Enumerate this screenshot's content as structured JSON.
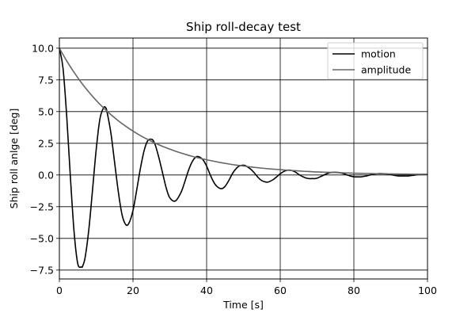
{
  "chart_data": {
    "type": "line",
    "title": "Ship roll-decay test",
    "xlabel": "Time [s]",
    "ylabel": "Ship roll anlge [deg]",
    "xlim": [
      0,
      100
    ],
    "ylim": [
      -8.2,
      10.8
    ],
    "xticks": [
      0,
      20,
      40,
      60,
      80,
      100
    ],
    "xtick_labels": [
      "0",
      "20",
      "40",
      "60",
      "80",
      "100"
    ],
    "yticks": [
      -7.5,
      -5.0,
      -2.5,
      0.0,
      2.5,
      5.0,
      7.5,
      10.0
    ],
    "ytick_labels": [
      "−7.5",
      "−5.0",
      "−2.5",
      "0.0",
      "2.5",
      "5.0",
      "7.5",
      "10.0"
    ],
    "grid": true,
    "legend_position": "top-right",
    "series": [
      {
        "name": "motion",
        "color": "#000000",
        "x": [
          0,
          1,
          2,
          3,
          4,
          5,
          6,
          6.3,
          7,
          8,
          9,
          10,
          11,
          12,
          12.6,
          13,
          14,
          15,
          16,
          17,
          18,
          18.9,
          20,
          21,
          22,
          23,
          24,
          25.2,
          26,
          27,
          28,
          29,
          30,
          31.5,
          33,
          34,
          35,
          36,
          37,
          37.8,
          39,
          40,
          41,
          42,
          43,
          44.1,
          45,
          46,
          47,
          48,
          49,
          50.4,
          52,
          53,
          54,
          55,
          56,
          56.7,
          58,
          59,
          60,
          61,
          62,
          63,
          64,
          65,
          66,
          67,
          68,
          69,
          69.3,
          70,
          71,
          72,
          73,
          74,
          75.6,
          77,
          78,
          79,
          80,
          81,
          81.9,
          83,
          84,
          85,
          86,
          87,
          88.2,
          90,
          91,
          92,
          93,
          94,
          94.5,
          96,
          97,
          98,
          99,
          100
        ],
        "y": [
          10.0,
          8.4,
          4.6,
          -0.2,
          -4.5,
          -7.0,
          -7.25,
          -7.2,
          -6.5,
          -4.3,
          -1.2,
          2.0,
          4.4,
          5.3,
          5.3,
          4.9,
          3.3,
          1.0,
          -1.3,
          -3.1,
          -3.9,
          -3.8,
          -2.8,
          -1.2,
          0.5,
          1.9,
          2.7,
          2.8,
          2.4,
          1.4,
          0.2,
          -1.0,
          -1.8,
          -2.05,
          -1.4,
          -0.6,
          0.3,
          1.0,
          1.4,
          1.45,
          1.2,
          0.7,
          0.0,
          -0.6,
          -0.95,
          -1.08,
          -0.9,
          -0.45,
          0.1,
          0.5,
          0.72,
          0.75,
          0.45,
          0.15,
          -0.2,
          -0.45,
          -0.55,
          -0.56,
          -0.38,
          -0.15,
          0.1,
          0.28,
          0.38,
          0.36,
          0.25,
          0.05,
          -0.12,
          -0.24,
          -0.29,
          -0.28,
          -0.29,
          -0.25,
          -0.12,
          0.02,
          0.14,
          0.2,
          0.2,
          0.12,
          0.02,
          -0.08,
          -0.14,
          -0.15,
          -0.15,
          -0.1,
          -0.03,
          0.05,
          0.09,
          0.11,
          0.1,
          0.03,
          -0.03,
          -0.07,
          -0.08,
          -0.08,
          -0.08,
          -0.03,
          0.01,
          0.04,
          0.05,
          0.05
        ]
      },
      {
        "name": "amplitude",
        "color": "#666666",
        "x": [
          0,
          2,
          4,
          6,
          8,
          10,
          12,
          14,
          16,
          18,
          20,
          22,
          24,
          26,
          28,
          30,
          32,
          34,
          36,
          38,
          40,
          42,
          44,
          46,
          48,
          50,
          52,
          54,
          56,
          58,
          60,
          62,
          64,
          66,
          68,
          70,
          72,
          74,
          76,
          78,
          80,
          82,
          84,
          86,
          88,
          90,
          92,
          94,
          96,
          98,
          100
        ],
        "y": [
          10.0,
          8.99,
          8.09,
          7.27,
          6.54,
          5.88,
          5.29,
          4.76,
          4.28,
          3.85,
          3.46,
          3.11,
          2.8,
          2.52,
          2.26,
          2.04,
          1.83,
          1.65,
          1.48,
          1.33,
          1.2,
          1.08,
          0.97,
          0.87,
          0.78,
          0.71,
          0.63,
          0.57,
          0.51,
          0.46,
          0.42,
          0.37,
          0.34,
          0.3,
          0.27,
          0.24,
          0.22,
          0.2,
          0.18,
          0.16,
          0.14,
          0.13,
          0.12,
          0.1,
          0.09,
          0.085,
          0.076,
          0.069,
          0.062,
          0.055,
          0.05
        ]
      }
    ]
  }
}
